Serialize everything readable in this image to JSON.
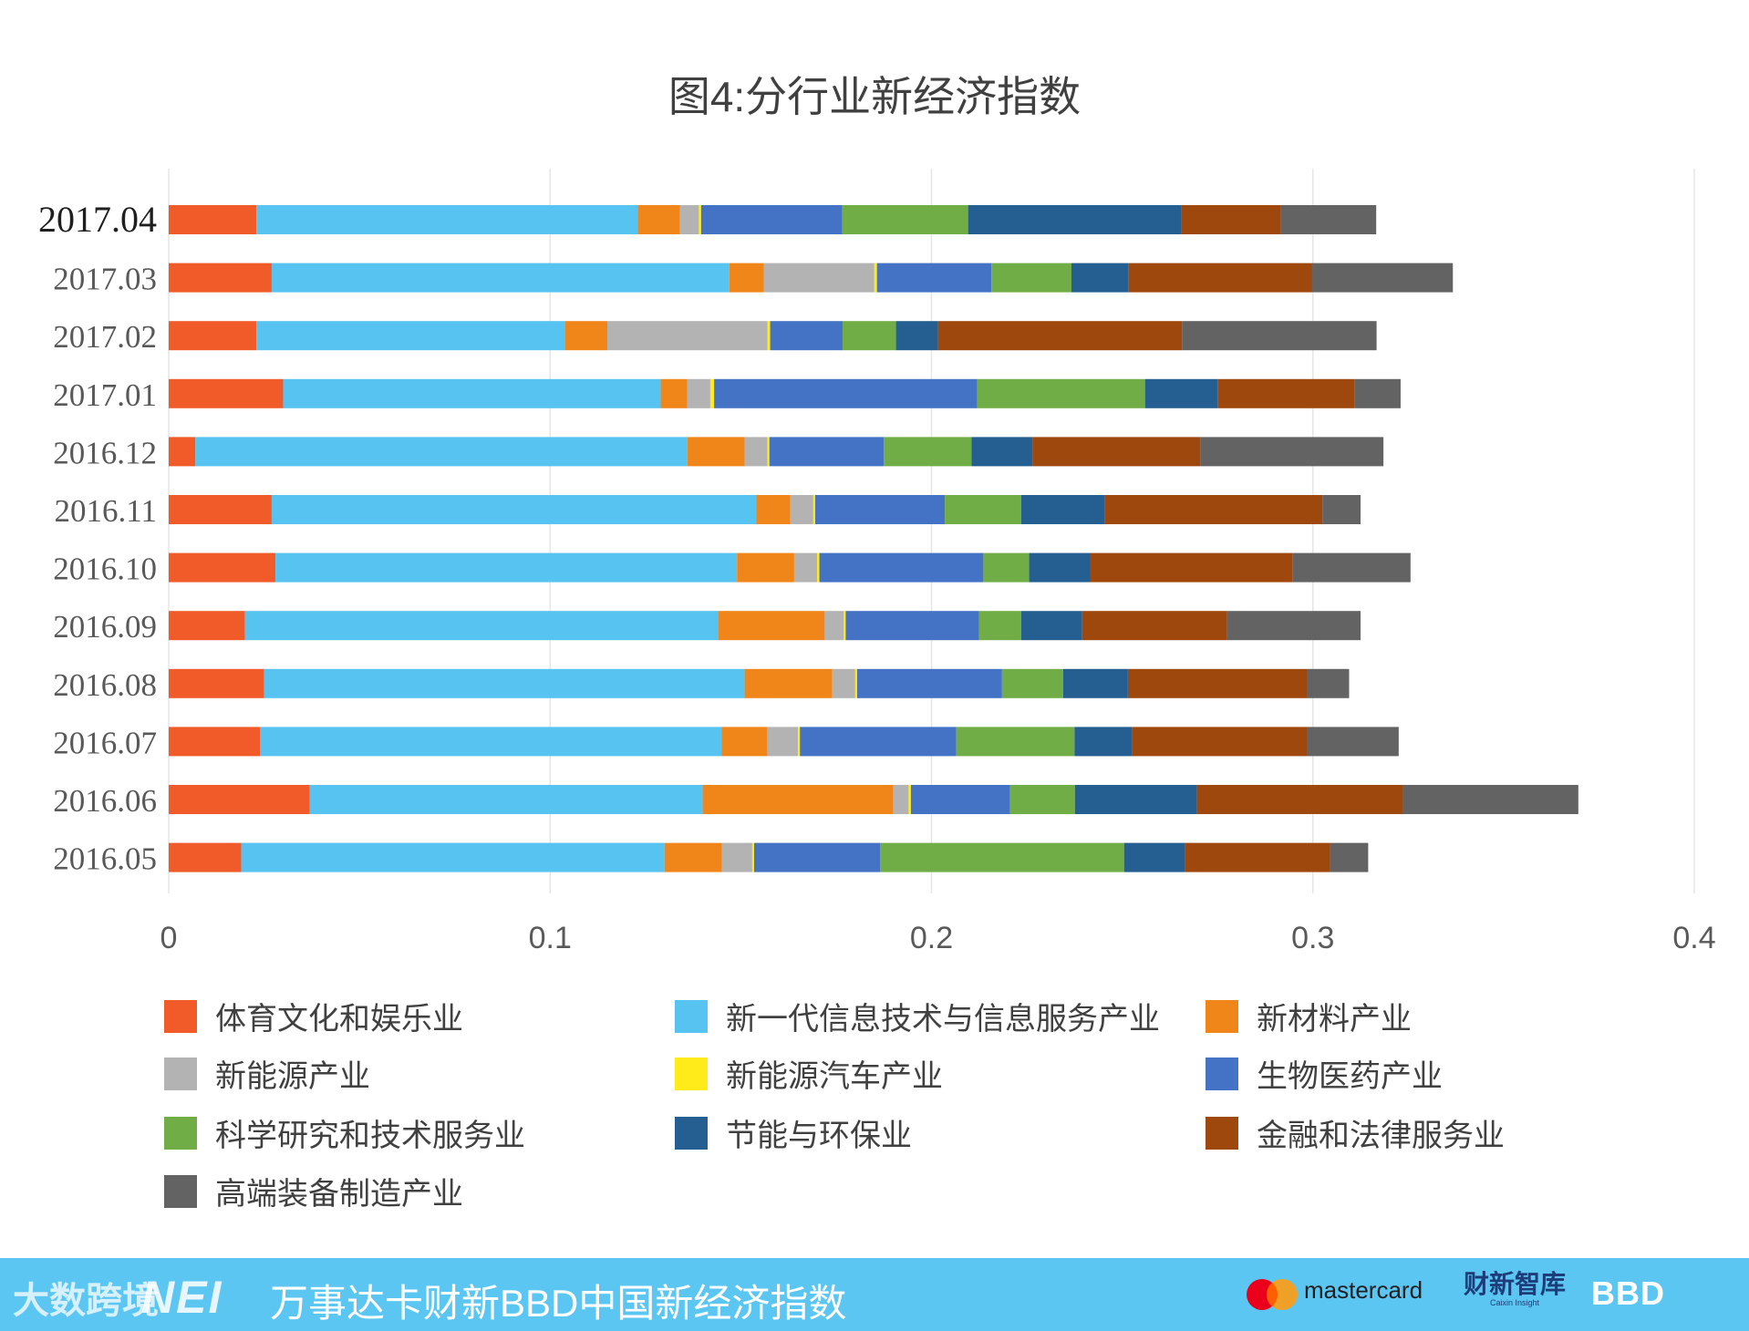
{
  "chart_data": {
    "type": "bar",
    "orientation": "horizontal",
    "stacked": true,
    "title": "图4:分行业新经济指数",
    "categories": [
      "2017.04",
      "2017.03",
      "2017.02",
      "2017.01",
      "2016.12",
      "2016.11",
      "2016.10",
      "2016.09",
      "2016.08",
      "2016.07",
      "2016.06",
      "2016.05"
    ],
    "xlim": [
      0,
      0.4
    ],
    "xticks": [
      "0",
      "0.1",
      "0.2",
      "0.3",
      "0.4"
    ],
    "xtick_values": [
      0,
      0.1,
      0.2,
      0.3,
      0.4
    ],
    "gridlines": true,
    "legend_position": "bottom",
    "series": [
      {
        "name": "体育文化和娱乐业",
        "color": "#f15a29",
        "values": [
          0.023,
          0.027,
          0.023,
          0.03,
          0.007,
          0.027,
          0.028,
          0.02,
          0.025,
          0.024,
          0.037,
          0.019
        ]
      },
      {
        "name": "新一代信息技术与信息服务产业",
        "color": "#56c3f0",
        "values": [
          0.1,
          0.12,
          0.081,
          0.099,
          0.129,
          0.127,
          0.121,
          0.124,
          0.126,
          0.121,
          0.103,
          0.111
        ]
      },
      {
        "name": "新材料产业",
        "color": "#f08519",
        "values": [
          0.011,
          0.009,
          0.011,
          0.007,
          0.015,
          0.009,
          0.015,
          0.028,
          0.023,
          0.012,
          0.05,
          0.015
        ]
      },
      {
        "name": "新能源产业",
        "color": "#b3b3b3",
        "values": [
          0.005,
          0.029,
          0.042,
          0.006,
          0.006,
          0.006,
          0.006,
          0.005,
          0.006,
          0.008,
          0.004,
          0.008
        ]
      },
      {
        "name": "新能源汽车产业",
        "color": "#ffeb1a",
        "values": [
          0.0006,
          0.0007,
          0.0007,
          0.001,
          0.0005,
          0.0005,
          0.0006,
          0.0005,
          0.0005,
          0.0005,
          0.0006,
          0.0005
        ]
      },
      {
        "name": "生物医药产业",
        "color": "#4472c4",
        "values": [
          0.037,
          0.03,
          0.019,
          0.069,
          0.03,
          0.034,
          0.043,
          0.035,
          0.038,
          0.041,
          0.026,
          0.033
        ]
      },
      {
        "name": "科学研究和技术服务业",
        "color": "#70ad47",
        "values": [
          0.033,
          0.021,
          0.014,
          0.044,
          0.023,
          0.02,
          0.012,
          0.011,
          0.016,
          0.031,
          0.017,
          0.064
        ]
      },
      {
        "name": "节能与环保业",
        "color": "#255e91",
        "values": [
          0.056,
          0.015,
          0.011,
          0.019,
          0.016,
          0.022,
          0.016,
          0.016,
          0.017,
          0.015,
          0.032,
          0.016
        ]
      },
      {
        "name": "金融和法律服务业",
        "color": "#9e480e",
        "values": [
          0.026,
          0.048,
          0.064,
          0.036,
          0.044,
          0.057,
          0.053,
          0.038,
          0.047,
          0.046,
          0.054,
          0.038
        ]
      },
      {
        "name": "高端装备制造产业",
        "color": "#636363",
        "values": [
          0.025,
          0.037,
          0.051,
          0.012,
          0.048,
          0.01,
          0.031,
          0.035,
          0.011,
          0.024,
          0.046,
          0.01
        ]
      }
    ]
  },
  "footer": {
    "watermark": "大数跨境",
    "logo_text": "NEI",
    "title": "万事达卡财新BBD中国新经济指数",
    "mastercard_text": "mastercard",
    "caixin_text": "财新智库",
    "caixin_sub": "Caixin Insight",
    "bbd_text": "BBD"
  }
}
